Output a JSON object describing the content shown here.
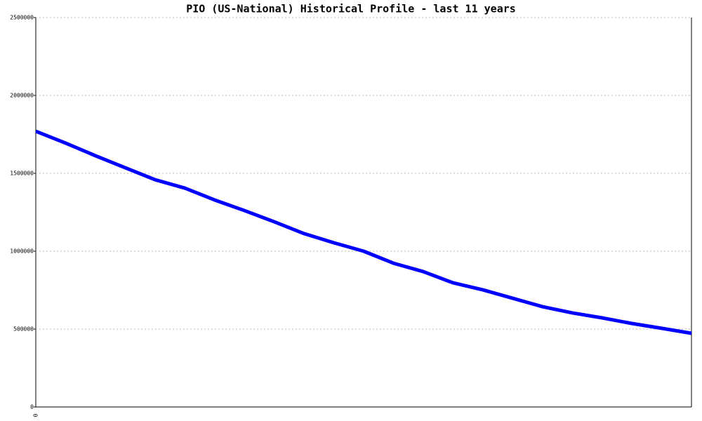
{
  "chart_data": {
    "type": "line",
    "title": "PIO (US-National) Historical Profile - last 11 years",
    "categories": [
      "0",
      null,
      null,
      null,
      null,
      null,
      null,
      null,
      null,
      null,
      null,
      null,
      null,
      null,
      null,
      null,
      null,
      null,
      null,
      null,
      null,
      null,
      null
    ],
    "series": [
      {
        "name": "PIO",
        "color": "#0000ff",
        "values": [
          1770000,
          1694000,
          1613000,
          1536000,
          1459000,
          1405000,
          1329000,
          1261000,
          1189000,
          1113000,
          1054000,
          1000000,
          923000,
          869000,
          797000,
          752000,
          698000,
          644000,
          604000,
          572000,
          536000,
          505000,
          473000
        ]
      }
    ],
    "ylim": [
      0,
      2500000
    ],
    "yticks": [
      0,
      500000,
      1000000,
      1500000,
      2000000,
      2500000
    ],
    "grid": true
  }
}
